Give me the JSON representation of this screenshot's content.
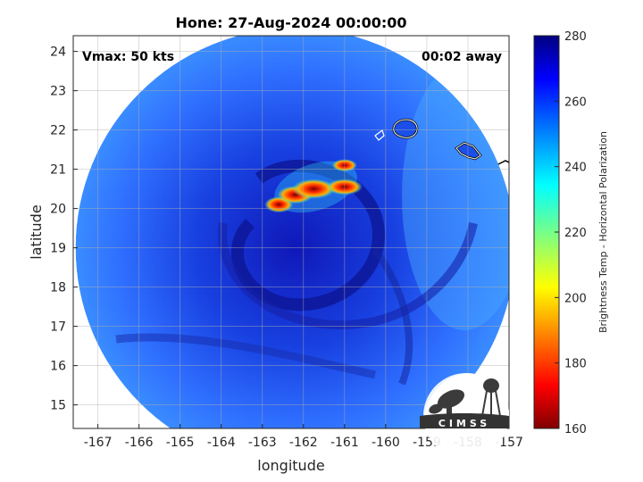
{
  "chart_data": {
    "type": "heatmap",
    "title": "Hone: 27-Aug-2024 00:00:00",
    "xlabel": "longitude",
    "ylabel": "latitude",
    "xlim": [
      -167.6,
      -157
    ],
    "ylim": [
      14.4,
      24.4
    ],
    "xticks": [
      -167,
      -166,
      -165,
      -164,
      -163,
      -162,
      -161,
      -160,
      -159,
      -158,
      -157
    ],
    "yticks": [
      15,
      16,
      17,
      18,
      19,
      20,
      21,
      22,
      23,
      24
    ],
    "grid": true,
    "annotations": {
      "left": "Vmax: 50 kts",
      "right": "00:02 away"
    },
    "swath_center": {
      "lon": -162.2,
      "lat": 19.0
    },
    "storm_center": {
      "lon": -162.0,
      "lat": 19.6
    },
    "warm_cores": [
      {
        "lon": -162.6,
        "lat": 20.1
      },
      {
        "lon": -162.2,
        "lat": 20.35
      },
      {
        "lon": -161.75,
        "lat": 20.5
      },
      {
        "lon": -161.0,
        "lat": 20.55
      },
      {
        "lon": -161.0,
        "lat": 21.1
      }
    ],
    "colorbar": {
      "label": "Brightness Temp - Horizontal Polarization",
      "min": 160,
      "max": 280,
      "ticks": [
        160,
        180,
        200,
        220,
        240,
        260,
        280
      ]
    },
    "logo": {
      "text": "CIMSS"
    }
  }
}
